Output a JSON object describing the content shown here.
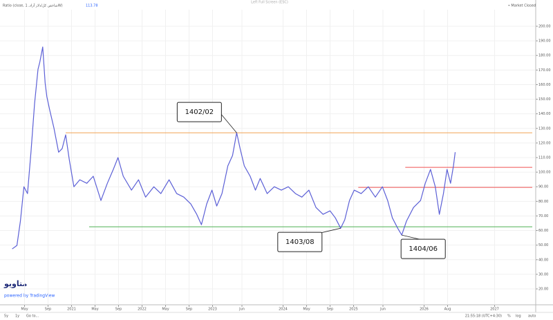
{
  "header": {
    "symbol": "Ratio (close, شاخص کل/دلار آزاد, 1W)",
    "last": "113.78",
    "center": "Left Full Screen (ESC)",
    "status": "• Market Closed"
  },
  "footer": {
    "ranges": [
      "5y",
      "1y",
      "Go to..."
    ],
    "time": "21:55:18 (UTC+4:30)",
    "options": [
      "%",
      "log",
      "auto"
    ]
  },
  "watermark": {
    "brand": "متاویو",
    "powered": "powered by TradingView"
  },
  "chart_data": {
    "type": "line",
    "grid": true,
    "xlim": [
      1,
      91
    ],
    "ylim": [
      20,
      200
    ],
    "xticks": [
      {
        "value": 4,
        "label": "May"
      },
      {
        "value": 8,
        "label": "Sep"
      },
      {
        "value": 12,
        "label": "2021"
      },
      {
        "value": 16,
        "label": "May"
      },
      {
        "value": 20,
        "label": "Sep"
      },
      {
        "value": 24,
        "label": "2022"
      },
      {
        "value": 28,
        "label": "May"
      },
      {
        "value": 32,
        "label": "Sep"
      },
      {
        "value": 36,
        "label": "2023"
      },
      {
        "value": 41,
        "label": "Jun"
      },
      {
        "value": 48,
        "label": "2024"
      },
      {
        "value": 52,
        "label": "May"
      },
      {
        "value": 56,
        "label": "Sep"
      },
      {
        "value": 60,
        "label": "2025"
      },
      {
        "value": 65,
        "label": "Jun"
      },
      {
        "value": 72,
        "label": "2026"
      },
      {
        "value": 76,
        "label": "Aug"
      },
      {
        "value": 84,
        "label": "2027"
      }
    ],
    "yticks": [
      {
        "value": 20,
        "label": "20.00"
      },
      {
        "value": 30,
        "label": "30.00"
      },
      {
        "value": 40,
        "label": "40.00"
      },
      {
        "value": 50,
        "label": "50.00"
      },
      {
        "value": 60,
        "label": "60.00"
      },
      {
        "value": 70,
        "label": "70.00"
      },
      {
        "value": 80,
        "label": "80.00"
      },
      {
        "value": 90,
        "label": "90.00"
      },
      {
        "value": 100,
        "label": "100.00"
      },
      {
        "value": 110,
        "label": "110.00"
      },
      {
        "value": 120,
        "label": "120.00"
      },
      {
        "value": 130,
        "label": "130.00"
      },
      {
        "value": 140,
        "label": "140.00"
      },
      {
        "value": 150,
        "label": "150.00"
      },
      {
        "value": 160,
        "label": "160.00"
      },
      {
        "value": 170,
        "label": "170.00"
      },
      {
        "value": 180,
        "label": "180.00"
      },
      {
        "value": 190,
        "label": "190.00"
      },
      {
        "value": 200,
        "label": "200.00"
      }
    ],
    "x": [
      1.9,
      2.7,
      3.3,
      3.9,
      4.5,
      5.1,
      5.7,
      6.3,
      6.6,
      7.1,
      7.5,
      7.8,
      8.3,
      9.0,
      9.8,
      10.4,
      11.0,
      11.6,
      12.4,
      13.4,
      14.6,
      15.7,
      17.0,
      18.1,
      19.1,
      19.9,
      20.8,
      22.2,
      23.4,
      24.6,
      26.0,
      27.2,
      28.6,
      29.9,
      31.1,
      32.3,
      33.3,
      34.1,
      35.0,
      35.9,
      36.7,
      37.6,
      38.6,
      39.4,
      40.1,
      40.7,
      41.4,
      42.4,
      43.3,
      44.1,
      45.3,
      46.5,
      47.7,
      48.9,
      50.1,
      51.2,
      52.4,
      53.6,
      54.8,
      56.0,
      56.9,
      57.8,
      58.5,
      59.3,
      60.1,
      61.3,
      62.5,
      63.7,
      64.9,
      65.8,
      66.6,
      67.5,
      68.2,
      69.0,
      70.2,
      71.4,
      72.2,
      73.1,
      73.9,
      74.6,
      75.3,
      75.9,
      76.5,
      77.0,
      77.3
    ],
    "series": [
      {
        "name": "Ratio",
        "color": "#5b5fd6",
        "values": [
          47.4,
          49.8,
          66.4,
          90,
          85.3,
          113.7,
          146.9,
          170.6,
          175.4,
          185.8,
          161.1,
          151.7,
          142.2,
          130.3,
          113.7,
          116.1,
          125.6,
          109,
          90,
          94.8,
          92.4,
          97.2,
          80.6,
          92.4,
          101.9,
          110,
          97.2,
          87.7,
          94.8,
          82.9,
          90,
          85.3,
          94.8,
          85.3,
          82.9,
          78.2,
          71.1,
          64,
          78.2,
          87.7,
          76.8,
          85.3,
          104.3,
          111.4,
          127,
          116.1,
          104.3,
          97.2,
          87.7,
          95.7,
          85.3,
          90,
          87.7,
          90,
          85.3,
          82.9,
          87.7,
          75.8,
          71.1,
          73.5,
          68.7,
          61.6,
          67.3,
          80.6,
          87.7,
          85.3,
          90,
          82.9,
          90,
          80.6,
          68.7,
          61.6,
          56.9,
          66.4,
          75.8,
          80.6,
          92.4,
          101.9,
          90,
          71.1,
          85.3,
          101.9,
          92.4,
          104.3,
          113.7
        ]
      }
    ],
    "levels": [
      {
        "value": 127,
        "x_start": 11,
        "color": "#f0a050"
      },
      {
        "value": 62.6,
        "x_start": 15,
        "color": "#4caf50"
      },
      {
        "value": 103.3,
        "x_start": 68.8,
        "color": "#f05050"
      },
      {
        "value": 89.6,
        "x_start": 60.8,
        "color": "#f05050"
      }
    ],
    "annotations": [
      {
        "label": "1402/02",
        "x": 40.1,
        "y": 127
      },
      {
        "label": "1403/08",
        "x": 57.8,
        "y": 61.6
      },
      {
        "label": "1404/06",
        "x": 68.2,
        "y": 56.9
      }
    ]
  }
}
